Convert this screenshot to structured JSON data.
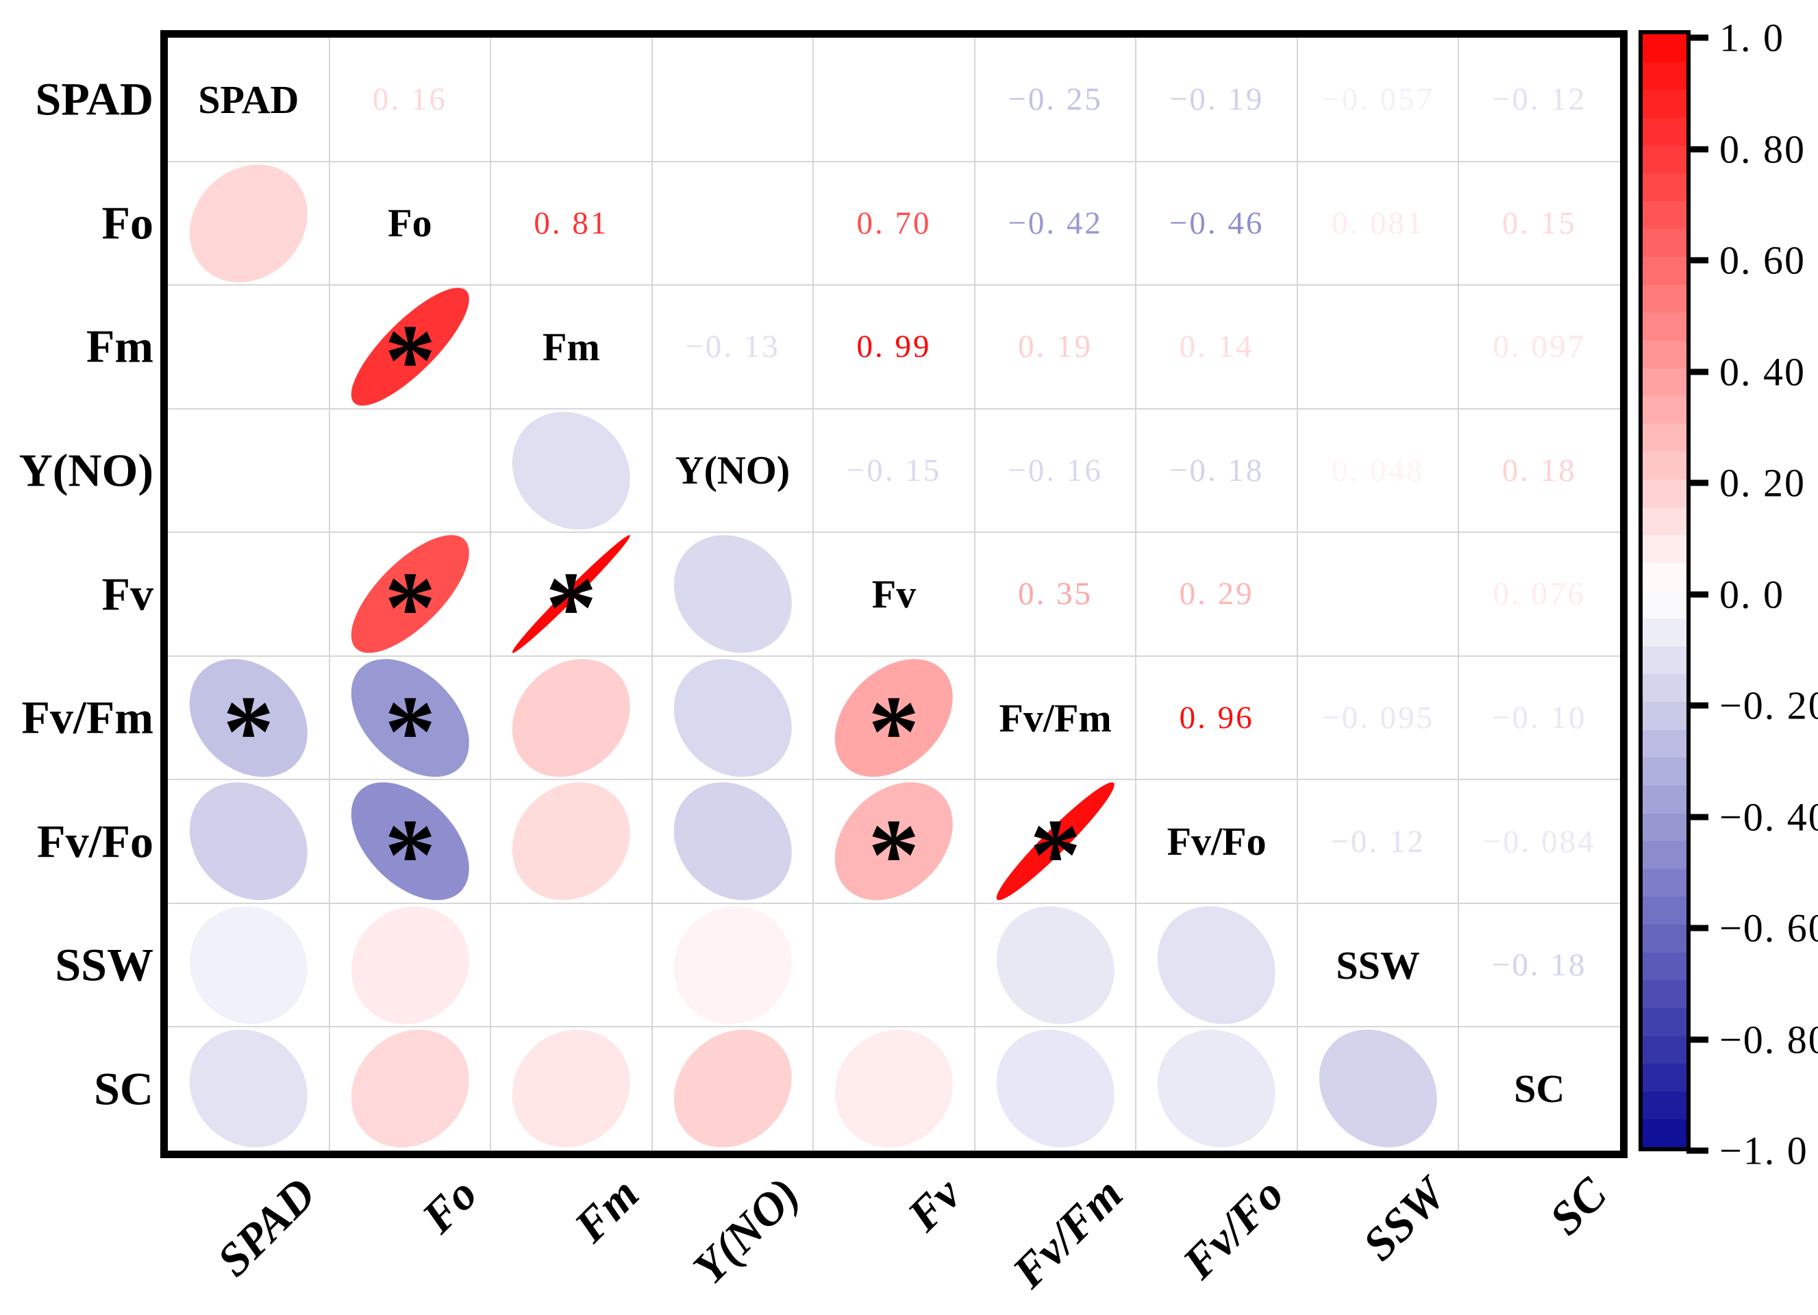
{
  "chart_data": {
    "type": "heatmap",
    "subtype": "correlation-matrix-ellipse",
    "description": "Correlation matrix: variable names on diagonal, correlation coefficients in upper triangle, correlation ellipses in lower triangle, asterisk marks significance",
    "variables": [
      "SPAD",
      "Fo",
      "Fm",
      "Y(NO)",
      "Fv",
      "Fv/Fm",
      "Fv/Fo",
      "SSW",
      "SC"
    ],
    "display_matrix": [
      [
        null,
        "0. 16",
        null,
        null,
        null,
        "−0. 25",
        "−0. 19",
        "−0. 057",
        "−0. 12"
      ],
      [
        "0. 16",
        null,
        "0. 81",
        null,
        "0. 70",
        "−0. 42",
        "−0. 46",
        "0. 081",
        "0. 15"
      ],
      [
        null,
        "0. 81",
        null,
        "−0. 13",
        "0. 99",
        "0. 19",
        "0. 14",
        null,
        "0. 097"
      ],
      [
        null,
        null,
        "−0. 13",
        null,
        "−0. 15",
        "−0. 16",
        "−0. 18",
        "0. 048",
        "0. 18"
      ],
      [
        null,
        "0. 70",
        "0. 99",
        "−0. 15",
        null,
        "0. 35",
        "0. 29",
        null,
        "0. 076"
      ],
      [
        "−0. 25",
        "−0. 42",
        "0. 19",
        "−0. 16",
        "0. 35",
        null,
        "0. 96",
        "−0. 095",
        "−0. 10"
      ],
      [
        "−0. 19",
        "−0. 46",
        "0. 14",
        "−0. 18",
        "0. 29",
        "0. 96",
        null,
        "−0. 12",
        "−0. 084"
      ],
      [
        "−0. 057",
        "0. 081",
        null,
        "0. 048",
        null,
        "−0. 095",
        "−0. 12",
        null,
        "−0. 18"
      ],
      [
        "−0. 12",
        "0. 15",
        "0. 097",
        "0. 18",
        "0. 076",
        "−0. 10",
        "−0. 084",
        "−0. 18",
        null
      ]
    ],
    "values_matrix": [
      [
        1,
        0.16,
        null,
        null,
        null,
        -0.25,
        -0.19,
        -0.057,
        -0.12
      ],
      [
        0.16,
        1,
        0.81,
        null,
        0.7,
        -0.42,
        -0.46,
        0.081,
        0.15
      ],
      [
        null,
        0.81,
        1,
        -0.13,
        0.99,
        0.19,
        0.14,
        null,
        0.097
      ],
      [
        null,
        null,
        -0.13,
        1,
        -0.15,
        -0.16,
        -0.18,
        0.048,
        0.18
      ],
      [
        null,
        0.7,
        0.99,
        -0.15,
        1,
        0.35,
        0.29,
        null,
        0.076
      ],
      [
        -0.25,
        -0.42,
        0.19,
        -0.16,
        0.35,
        1,
        0.96,
        -0.095,
        -0.1
      ],
      [
        -0.19,
        -0.46,
        0.14,
        -0.18,
        0.29,
        0.96,
        1,
        -0.12,
        -0.084
      ],
      [
        -0.057,
        0.081,
        null,
        0.048,
        null,
        -0.095,
        -0.12,
        1,
        -0.18
      ],
      [
        -0.12,
        0.15,
        0.097,
        0.18,
        0.076,
        -0.1,
        -0.084,
        -0.18,
        1
      ]
    ],
    "significant_cells": [
      [
        2,
        1
      ],
      [
        4,
        1
      ],
      [
        4,
        2
      ],
      [
        5,
        0
      ],
      [
        5,
        1
      ],
      [
        5,
        4
      ],
      [
        6,
        1
      ],
      [
        6,
        4
      ],
      [
        6,
        5
      ]
    ],
    "significance_marker": "*",
    "x_tick_labels": [
      "SPAD",
      "Fo",
      "Fm",
      "Y(NO)",
      "Fv",
      "Fv/Fm",
      "Fv/Fo",
      "SSW",
      "SC"
    ],
    "y_tick_labels": [
      "SPAD",
      "Fo",
      "Fm",
      "Y(NO)",
      "Fv",
      "Fv/Fm",
      "Fv/Fo",
      "SSW",
      "SC"
    ],
    "colorbar": {
      "tick_labels": [
        "1. 0",
        "0. 80",
        "0. 60",
        "0. 40",
        "0. 20",
        "0. 0",
        "−0. 20",
        "−0. 40",
        "−0. 60",
        "−0. 80",
        "−1. 0"
      ],
      "tick_values": [
        1.0,
        0.8,
        0.6,
        0.4,
        0.2,
        0.0,
        -0.2,
        -0.4,
        -0.6,
        -0.8,
        -1.0
      ],
      "max": 1.0,
      "min": -1.0,
      "positive_color": "#ff0303",
      "zero_color": "#ffffff",
      "negative_color": "#0a0a96"
    },
    "grid": true,
    "legend_position": "right-colorbar"
  }
}
